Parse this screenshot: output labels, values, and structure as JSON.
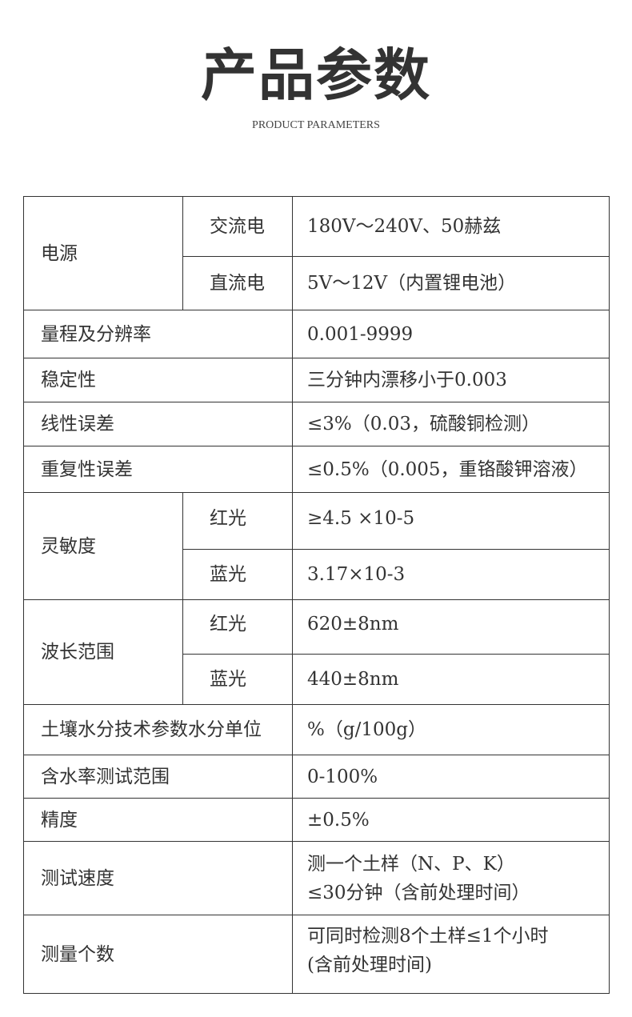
{
  "header": {
    "title": "产品参数",
    "subtitle": "PRODUCT PARAMETERS"
  },
  "rows": [
    {
      "label": "电源",
      "sub": [
        {
          "label": "交流电",
          "value": "180V～240V、50赫兹"
        },
        {
          "label": "直流电",
          "value": "5V～12V（内置锂电池）"
        }
      ]
    },
    {
      "label": "量程及分辨率",
      "value": "0.001-9999"
    },
    {
      "label": "稳定性",
      "value": "三分钟内漂移小于0.003"
    },
    {
      "label": "线性误差",
      "value": "≤3%（0.03，硫酸铜检测）"
    },
    {
      "label": "重复性误差",
      "value": "≤0.5%（0.005，重铬酸钾溶液）"
    },
    {
      "label": "灵敏度",
      "sub": [
        {
          "label": "红光",
          "value": "≥4.5 ×10-5"
        },
        {
          "label": "蓝光",
          "value": "3.17×10-3"
        }
      ]
    },
    {
      "label": "波长范围",
      "sub": [
        {
          "label": "红光",
          "value": "620±8nm"
        },
        {
          "label": "蓝光",
          "value": "440±8nm"
        }
      ]
    },
    {
      "label": "土壤水分技术参数水分单位",
      "value": "%（g/100g）"
    },
    {
      "label": "含水率测试范围",
      "value": "0-100%"
    },
    {
      "label": "精度",
      "value": "±0.5%"
    },
    {
      "label": "测试速度",
      "value_lines": [
        "测一个土样（N、P、K）",
        "≤30分钟（含前处理时间）"
      ]
    },
    {
      "label": "测量个数",
      "value_lines": [
        "可同时检测8个土样≤1个小时",
        "(含前处理时间)"
      ]
    }
  ]
}
